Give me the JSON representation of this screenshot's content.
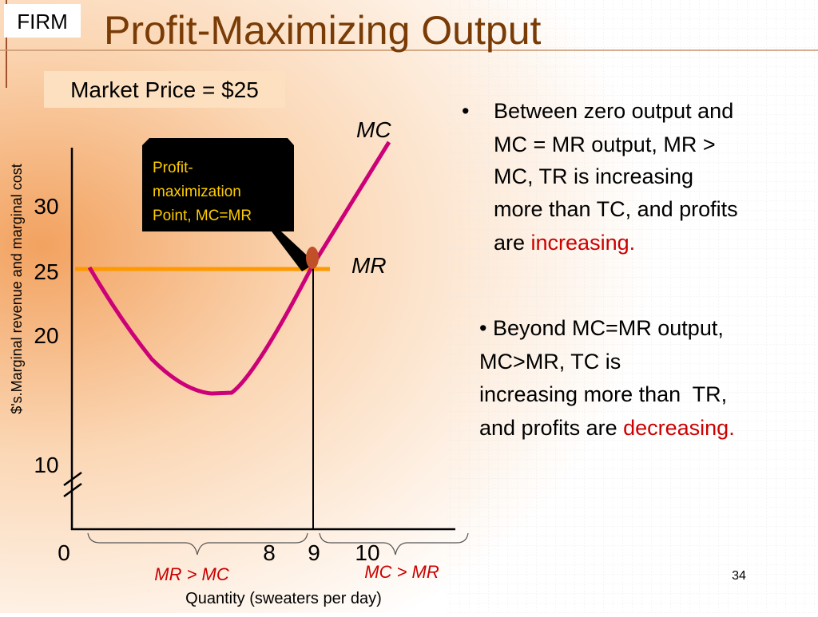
{
  "header": {
    "tag": "FIRM",
    "title": "Profit-Maximizing Output"
  },
  "price_box": "Market Price = $25",
  "graph": {
    "y_axis_title": "$'s.Marginal revenue and marginal cost",
    "y_labels": [
      "30",
      "25",
      "20",
      "10"
    ],
    "x_labels": [
      "0",
      "8",
      "9",
      "10"
    ],
    "curve_labels": [
      "MC",
      "MR"
    ],
    "callout": [
      "Profit-",
      "maximization",
      "Point, MC=MR"
    ],
    "region_labels": [
      "MR > MC",
      "MC > MR"
    ],
    "x_axis_title": "Quantity (sweaters per day)"
  },
  "bullets": [
    {
      "marker": "•",
      "lines": [
        "Between zero output and",
        "MC = MR output, MR >",
        "MC, TR is increasing",
        "more than TC, and profits",
        "are "
      ],
      "highlight": "increasing."
    },
    {
      "lines": [
        "• Beyond MC=MR output,",
        "MC>MR, TC is",
        "increasing more than  TR,",
        "and profits are "
      ],
      "highlight": "decreasing."
    }
  ],
  "page_number": "34"
}
